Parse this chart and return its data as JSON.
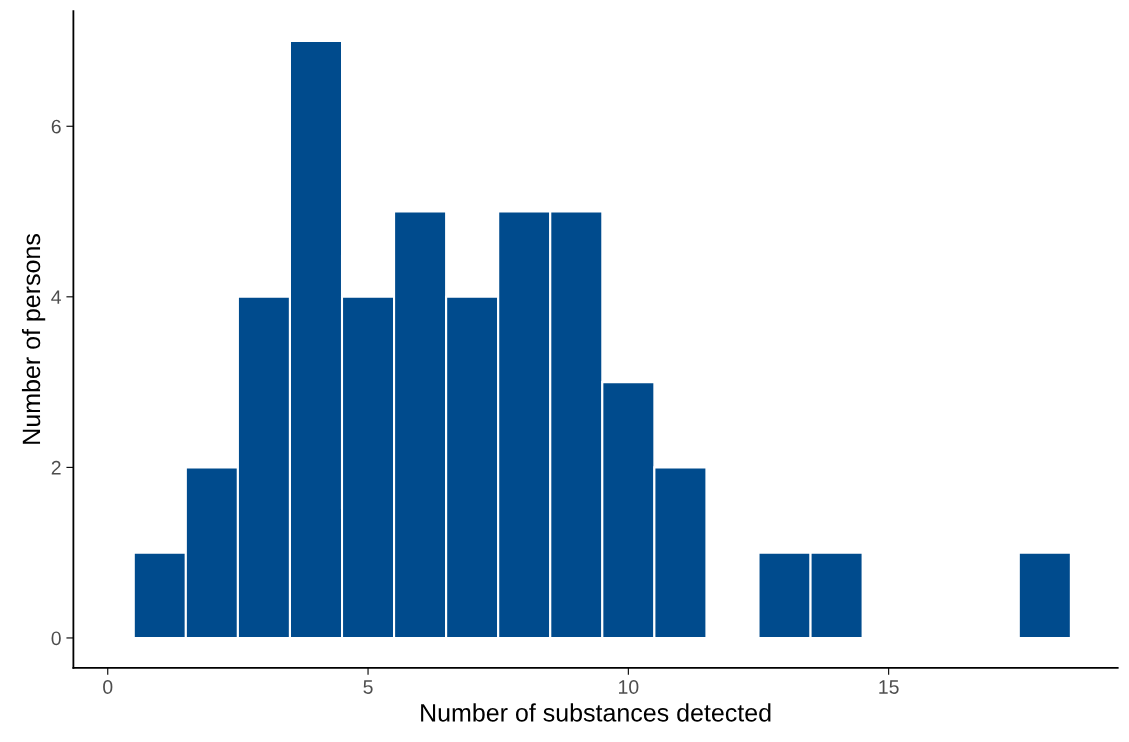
{
  "chart_data": {
    "type": "histogram",
    "xlabel": "Number of substances detected",
    "ylabel": "Number of persons",
    "bins": [
      0.5,
      1.5,
      2.5,
      3.5,
      4.5,
      5.5,
      6.5,
      7.5,
      8.5,
      9.5,
      10.5,
      11.5,
      12.5,
      13.5,
      14.5,
      15.5,
      16.5,
      17.5,
      18.5
    ],
    "values": [
      1,
      2,
      4,
      7,
      4,
      5,
      4,
      5,
      5,
      3,
      2,
      0,
      1,
      1,
      0,
      0,
      0,
      1
    ],
    "color": "#004b8d",
    "xlim": [
      -0.66,
      19.4
    ],
    "xticks": [
      0,
      5,
      10,
      15
    ],
    "ylim": [
      -0.35,
      7.35
    ],
    "yticks": [
      0,
      2,
      4,
      6
    ],
    "grid": false
  }
}
